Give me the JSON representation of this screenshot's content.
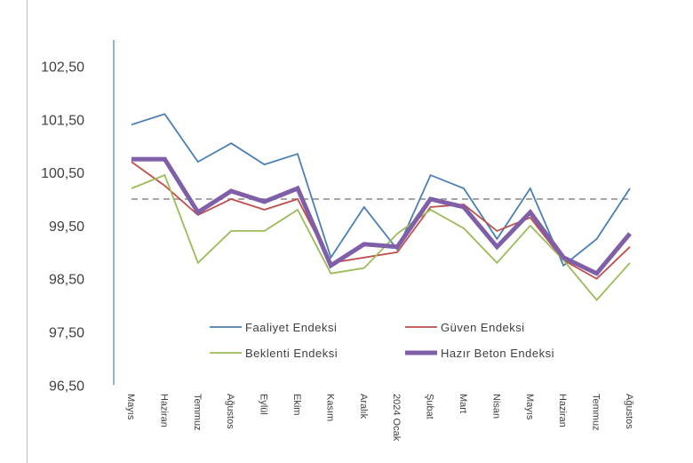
{
  "chart_data": {
    "type": "line",
    "title": "",
    "xlabel": "",
    "ylabel": "",
    "ylim": [
      96.5,
      103.1
    ],
    "yticks": [
      "102,50",
      "101,50",
      "100,50",
      "99,50",
      "98,50",
      "97,50",
      "96,50"
    ],
    "ytick_values": [
      102.5,
      101.5,
      100.5,
      99.5,
      98.5,
      97.5,
      96.5
    ],
    "categories": [
      "Mayıs",
      "Haziran",
      "Temmuz",
      "Ağustos",
      "Eylül",
      "Ekim",
      "Kasım",
      "Aralık",
      "2024 Ocak",
      "Şubat",
      "Mart",
      "Nisan",
      "Mayıs",
      "Haziran",
      "Temmuz",
      "Ağustos"
    ],
    "reference_line": 100.0,
    "grid": false,
    "legend_position": "bottom-center",
    "series": [
      {
        "name": "Faaliyet Endeksi",
        "color": "#4a7eb5",
        "width": 1.8,
        "values": [
          101.4,
          101.6,
          100.7,
          101.05,
          100.65,
          100.85,
          98.9,
          99.85,
          99.05,
          100.45,
          100.2,
          99.25,
          100.2,
          98.75,
          99.25,
          100.2
        ]
      },
      {
        "name": "Güven Endeksi",
        "color": "#c0504d",
        "width": 1.8,
        "values": [
          100.7,
          100.25,
          99.7,
          100.0,
          99.8,
          100.0,
          98.8,
          98.9,
          99.0,
          99.85,
          99.9,
          99.4,
          99.65,
          98.85,
          98.5,
          99.1
        ]
      },
      {
        "name": "Beklenti Endeksi",
        "color": "#9bbb59",
        "width": 1.8,
        "values": [
          100.2,
          100.45,
          98.8,
          99.4,
          99.4,
          99.8,
          98.6,
          98.7,
          99.35,
          99.8,
          99.45,
          98.8,
          99.5,
          98.85,
          98.1,
          98.8
        ]
      },
      {
        "name": "Hazır Beton Endeksi",
        "color": "#7f5fa8",
        "width": 5,
        "values": [
          100.75,
          100.75,
          99.75,
          100.15,
          99.95,
          100.2,
          98.75,
          99.15,
          99.1,
          100.0,
          99.85,
          99.1,
          99.75,
          98.9,
          98.6,
          99.35
        ]
      }
    ]
  }
}
